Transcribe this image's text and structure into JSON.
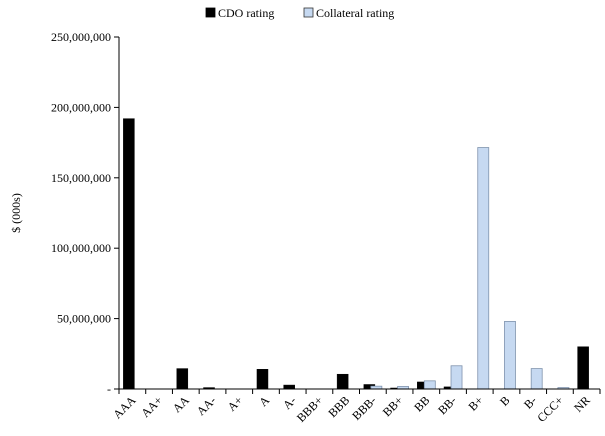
{
  "chart_data": {
    "type": "bar",
    "title": "",
    "xlabel": "",
    "ylabel": "$ (000s)",
    "ylim": [
      0,
      250000000
    ],
    "yticks": [
      0,
      50000000,
      100000000,
      150000000,
      200000000,
      250000000
    ],
    "ytick_labels": [
      "-",
      "50,000,000",
      "100,000,000",
      "150,000,000",
      "200,000,000",
      "250,000,000"
    ],
    "grid": false,
    "legend_position": "top-center",
    "categories": [
      "AAA",
      "AA+",
      "AA",
      "AA-",
      "A+",
      "A",
      "A-",
      "BBB+",
      "BBB",
      "BBB-",
      "BB+",
      "BB",
      "BB-",
      "B+",
      "B",
      "B-",
      "CCC+",
      "NR"
    ],
    "series": [
      {
        "name": "CDO rating",
        "color": "#000000",
        "values": [
          192000000,
          0,
          14500000,
          1000000,
          0,
          14000000,
          2800000,
          0,
          10500000,
          3200000,
          200000,
          5000000,
          1500000,
          0,
          0,
          0,
          0,
          30000000
        ]
      },
      {
        "name": "Collateral rating",
        "color": "#c6d9f1",
        "values": [
          0,
          0,
          0,
          0,
          0,
          0,
          0,
          0,
          0,
          2000000,
          1800000,
          5800000,
          16500000,
          171500000,
          48000000,
          14500000,
          1000000,
          0
        ]
      }
    ]
  }
}
